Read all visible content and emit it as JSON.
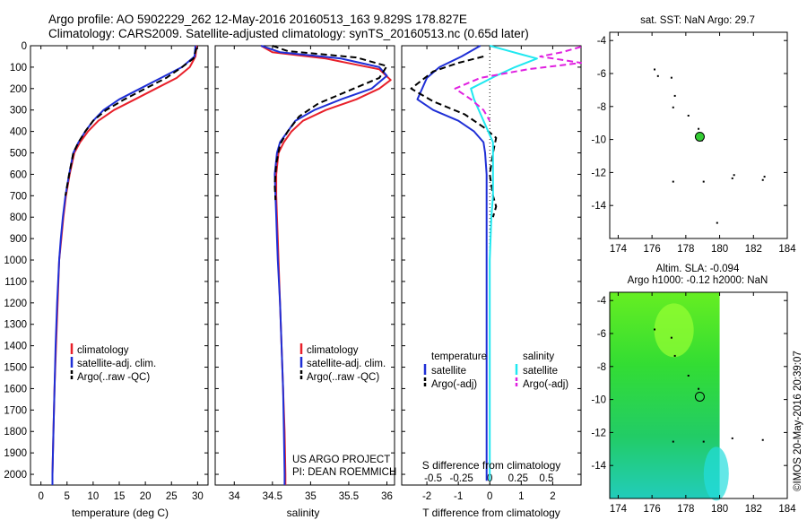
{
  "header": {
    "line1": "Argo profile: AO 5902229_262 12-May-2016 20160513_163 9.829S 178.827E",
    "line2": "Climatology: CARS2009. Satellite-adjusted climatology: synTS_20160513.nc (0.65d later)"
  },
  "colors": {
    "climatology": "#e8202a",
    "satellite": "#1f2fd6",
    "argo": "#000000",
    "sal_sat": "#20e8f0",
    "sal_argo": "#e020e0",
    "map_green": "#33cc33"
  },
  "chart_data": [
    {
      "type": "line",
      "id": "temperature",
      "xlabel": "temperature (deg C)",
      "ylabel": "",
      "xlim": [
        -2,
        32
      ],
      "ylim": [
        2050,
        0
      ],
      "xticks": [
        "0",
        "5",
        "10",
        "15",
        "20",
        "25",
        "30"
      ],
      "xtick_values": [
        0,
        5,
        10,
        15,
        20,
        25,
        30
      ],
      "yticks": [
        "0",
        "100",
        "200",
        "300",
        "400",
        "500",
        "600",
        "700",
        "800",
        "900",
        "1000",
        "1100",
        "1200",
        "1300",
        "1400",
        "1500",
        "1600",
        "1700",
        "1800",
        "1900",
        "2000"
      ],
      "ytick_values": [
        0,
        100,
        200,
        300,
        400,
        500,
        600,
        700,
        800,
        900,
        1000,
        1100,
        1200,
        1300,
        1400,
        1500,
        1600,
        1700,
        1800,
        1900,
        2000
      ],
      "legend": [
        "climatology",
        "satellite-adj. clim.",
        "Argo(..raw -QC)"
      ],
      "series": [
        {
          "name": "climatology",
          "color": "#e8202a",
          "dash": false,
          "points": [
            [
              29.8,
              0
            ],
            [
              29.6,
              50
            ],
            [
              28.5,
              100
            ],
            [
              26,
              150
            ],
            [
              22,
              200
            ],
            [
              18,
              250
            ],
            [
              14,
              300
            ],
            [
              11,
              350
            ],
            [
              9,
              400
            ],
            [
              7.5,
              450
            ],
            [
              6.4,
              500
            ],
            [
              5.5,
              600
            ],
            [
              4.8,
              700
            ],
            [
              4.3,
              800
            ],
            [
              3.9,
              900
            ],
            [
              3.5,
              1000
            ],
            [
              3.2,
              1200
            ],
            [
              2.9,
              1400
            ],
            [
              2.6,
              1600
            ],
            [
              2.4,
              1800
            ],
            [
              2.2,
              2000
            ],
            [
              2.2,
              2050
            ]
          ]
        },
        {
          "name": "satellite-adj. clim.",
          "color": "#1f2fd6",
          "dash": false,
          "points": [
            [
              29.6,
              0
            ],
            [
              29.4,
              50
            ],
            [
              27,
              100
            ],
            [
              23,
              150
            ],
            [
              19,
              200
            ],
            [
              15,
              250
            ],
            [
              12,
              300
            ],
            [
              10,
              350
            ],
            [
              8.5,
              400
            ],
            [
              7.2,
              450
            ],
            [
              6.2,
              500
            ],
            [
              5.4,
              600
            ],
            [
              4.7,
              700
            ],
            [
              4.2,
              800
            ],
            [
              3.8,
              900
            ],
            [
              3.5,
              1000
            ],
            [
              3.1,
              1200
            ],
            [
              2.8,
              1400
            ],
            [
              2.6,
              1600
            ],
            [
              2.4,
              1800
            ],
            [
              2.2,
              2000
            ],
            [
              2.2,
              2050
            ]
          ]
        },
        {
          "name": "Argo(..raw -QC)",
          "color": "#000000",
          "dash": true,
          "points": [
            [
              29.8,
              10
            ],
            [
              29.2,
              60
            ],
            [
              27,
              100
            ],
            [
              24,
              150
            ],
            [
              20,
              200
            ],
            [
              16,
              250
            ],
            [
              12.5,
              300
            ],
            [
              10,
              350
            ],
            [
              8.5,
              400
            ],
            [
              7.2,
              450
            ],
            [
              6.2,
              500
            ],
            [
              5.4,
              600
            ],
            [
              4.7,
              700
            ]
          ]
        }
      ]
    },
    {
      "type": "line",
      "id": "salinity",
      "xlabel": "salinity",
      "xlim": [
        33.75,
        36.1
      ],
      "ylim": [
        2050,
        0
      ],
      "xticks": [
        "34",
        "34.5",
        "35",
        "35.5",
        "36"
      ],
      "xtick_values": [
        34,
        34.5,
        35,
        35.5,
        36
      ],
      "legend": [
        "climatology",
        "satellite-adj. clim.",
        "Argo(..raw -QC)"
      ],
      "annotation": [
        "US ARGO PROJECT",
        "PI: DEAN ROEMMICH"
      ],
      "series": [
        {
          "name": "climatology",
          "color": "#e8202a",
          "dash": false,
          "points": [
            [
              34.35,
              0
            ],
            [
              34.5,
              30
            ],
            [
              35.2,
              60
            ],
            [
              35.9,
              110
            ],
            [
              36.05,
              160
            ],
            [
              35.9,
              200
            ],
            [
              35.6,
              250
            ],
            [
              35.2,
              300
            ],
            [
              34.9,
              350
            ],
            [
              34.75,
              400
            ],
            [
              34.65,
              450
            ],
            [
              34.58,
              500
            ],
            [
              34.55,
              600
            ],
            [
              34.55,
              700
            ],
            [
              34.56,
              800
            ],
            [
              34.57,
              900
            ],
            [
              34.58,
              1000
            ],
            [
              34.6,
              1200
            ],
            [
              34.62,
              1400
            ],
            [
              34.64,
              1600
            ],
            [
              34.66,
              1800
            ],
            [
              34.67,
              2000
            ],
            [
              34.67,
              2050
            ]
          ]
        },
        {
          "name": "satellite-adj. clim.",
          "color": "#1f2fd6",
          "dash": false,
          "points": [
            [
              34.35,
              0
            ],
            [
              34.6,
              30
            ],
            [
              35.4,
              60
            ],
            [
              35.9,
              100
            ],
            [
              36.0,
              140
            ],
            [
              35.8,
              200
            ],
            [
              35.4,
              250
            ],
            [
              35.05,
              300
            ],
            [
              34.8,
              350
            ],
            [
              34.7,
              400
            ],
            [
              34.6,
              450
            ],
            [
              34.56,
              500
            ],
            [
              34.53,
              600
            ],
            [
              34.54,
              700
            ],
            [
              34.55,
              800
            ],
            [
              34.56,
              900
            ],
            [
              34.57,
              1000
            ],
            [
              34.6,
              1200
            ],
            [
              34.62,
              1400
            ],
            [
              34.64,
              1600
            ],
            [
              34.65,
              1800
            ],
            [
              34.66,
              2000
            ],
            [
              34.66,
              2050
            ]
          ]
        },
        {
          "name": "Argo(..raw -QC)",
          "color": "#000000",
          "dash": true,
          "points": [
            [
              34.5,
              0
            ],
            [
              34.7,
              25
            ],
            [
              35.6,
              55
            ],
            [
              36.0,
              95
            ],
            [
              35.9,
              150
            ],
            [
              35.5,
              210
            ],
            [
              35.1,
              270
            ],
            [
              34.85,
              330
            ],
            [
              34.7,
              400
            ],
            [
              34.6,
              460
            ],
            [
              34.55,
              550
            ],
            [
              34.53,
              650
            ],
            [
              34.54,
              720
            ]
          ]
        }
      ]
    },
    {
      "type": "line",
      "id": "difference",
      "xlabel": "T difference from climatology",
      "xlabel_top": "S difference from climatology",
      "xlim": [
        -2.8,
        2.9
      ],
      "ylim": [
        2050,
        0
      ],
      "xticks": [
        "-2",
        "-1",
        "0",
        "1",
        "2"
      ],
      "xtick_values": [
        -2,
        -1,
        0,
        1,
        2
      ],
      "sticks": [
        "-0.5",
        "-0.25",
        "0",
        "0.25",
        "0.5"
      ],
      "stick_values": [
        -1.8,
        -0.9,
        0,
        0.9,
        1.8
      ],
      "legend_titles": [
        "temperature",
        "salinity"
      ],
      "legend": [
        "satellite",
        "Argo(-adj)",
        "satellite",
        "Argo(-adj)"
      ],
      "series": [
        {
          "name": "T satellite",
          "color": "#1f2fd6",
          "dash": false,
          "points": [
            [
              -0.3,
              0
            ],
            [
              -0.9,
              50
            ],
            [
              -1.6,
              100
            ],
            [
              -2.0,
              150
            ],
            [
              -2.3,
              250
            ],
            [
              -1.8,
              300
            ],
            [
              -1.0,
              350
            ],
            [
              -0.5,
              400
            ],
            [
              -0.2,
              450
            ],
            [
              -0.15,
              500
            ],
            [
              -0.1,
              600
            ],
            [
              -0.1,
              800
            ],
            [
              -0.1,
              1000
            ],
            [
              -0.1,
              1400
            ],
            [
              -0.1,
              1800
            ],
            [
              -0.1,
              2030
            ]
          ]
        },
        {
          "name": "T Argo(-adj)",
          "color": "#000000",
          "dash": true,
          "points": [
            [
              -0.2,
              50
            ],
            [
              -1.0,
              80
            ],
            [
              -1.8,
              120
            ],
            [
              -2.5,
              200
            ],
            [
              -1.8,
              260
            ],
            [
              -0.8,
              320
            ],
            [
              -0.2,
              380
            ],
            [
              0.2,
              430
            ],
            [
              0.1,
              500
            ],
            [
              0.0,
              600
            ],
            [
              0.1,
              700
            ],
            [
              0.2,
              750
            ],
            [
              0.1,
              800
            ]
          ]
        },
        {
          "name": "S satellite",
          "color": "#20e8f0",
          "dash": false,
          "points": [
            [
              0,
              0
            ],
            [
              0.5,
              20
            ],
            [
              1.0,
              40
            ],
            [
              1.5,
              60
            ],
            [
              0.8,
              100
            ],
            [
              0.2,
              140
            ],
            [
              -0.6,
              200
            ],
            [
              -0.5,
              250
            ],
            [
              -0.2,
              350
            ],
            [
              0.1,
              450
            ],
            [
              0.1,
              600
            ],
            [
              0.1,
              700
            ],
            [
              0.05,
              800
            ],
            [
              0.0,
              1000
            ],
            [
              0.0,
              1400
            ],
            [
              0.0,
              1800
            ],
            [
              0.0,
              2030
            ]
          ]
        },
        {
          "name": "S Argo(-adj)",
          "color": "#e020e0",
          "dash": true,
          "points": [
            [
              2.9,
              5
            ],
            [
              2.3,
              30
            ],
            [
              1.6,
              50
            ],
            [
              2.9,
              80
            ],
            [
              1.2,
              110
            ],
            [
              -0.3,
              150
            ],
            [
              -1.1,
              200
            ],
            [
              -0.6,
              250
            ],
            [
              -0.2,
              300
            ],
            [
              0.0,
              350
            ]
          ]
        }
      ]
    },
    {
      "type": "scatter",
      "id": "location-map",
      "title": "sat. SST: NaN Argo: 29.7",
      "xlim": [
        173.5,
        184
      ],
      "ylim": [
        -16,
        -3.5
      ],
      "xticks": [
        "174",
        "176",
        "178",
        "180",
        "182",
        "184"
      ],
      "xtick_values": [
        174,
        176,
        178,
        180,
        182,
        184
      ],
      "yticks": [
        "-4",
        "-6",
        "-8",
        "-10",
        "-12",
        "-14"
      ],
      "ytick_values": [
        -4,
        -6,
        -8,
        -10,
        -12,
        -14
      ],
      "float": {
        "lon": 178.827,
        "lat": -9.829
      },
      "islands": [
        [
          176.1,
          -5.7
        ],
        [
          176.3,
          -6.1
        ],
        [
          177.1,
          -6.2
        ],
        [
          177.3,
          -7.3
        ],
        [
          177.2,
          -8.0
        ],
        [
          178.1,
          -8.5
        ],
        [
          178.7,
          -9.3
        ],
        [
          178.9,
          -10.0
        ],
        [
          177.2,
          -12.5
        ],
        [
          179.0,
          -12.5
        ],
        [
          180.7,
          -12.3
        ],
        [
          180.8,
          -12.1
        ],
        [
          182.5,
          -12.4
        ],
        [
          182.6,
          -12.2
        ],
        [
          179.8,
          -15.0
        ]
      ]
    },
    {
      "type": "heatmap",
      "id": "altimetry-map",
      "title_line1": "Altim. SLA: -0.094",
      "title_line2": "Argo h1000: -0.12 h2000: NaN",
      "xlim": [
        173.5,
        184
      ],
      "ylim": [
        -16,
        -3.5
      ],
      "data_xlim": [
        173.5,
        180
      ],
      "xticks": [
        "174",
        "176",
        "178",
        "180",
        "182",
        "184"
      ],
      "xtick_values": [
        174,
        176,
        178,
        180,
        182,
        184
      ],
      "yticks": [
        "-4",
        "-6",
        "-8",
        "-10",
        "-12",
        "-14"
      ],
      "ytick_values": [
        -4,
        -6,
        -8,
        -10,
        -12,
        -14
      ],
      "float": {
        "lon": 178.827,
        "lat": -9.829
      },
      "islands": [
        [
          176.1,
          -5.7
        ],
        [
          177.1,
          -6.2
        ],
        [
          177.3,
          -7.3
        ],
        [
          178.1,
          -8.5
        ],
        [
          178.7,
          -9.3
        ],
        [
          177.2,
          -12.5
        ],
        [
          179.0,
          -12.5
        ],
        [
          180.7,
          -12.3
        ],
        [
          182.5,
          -12.4
        ]
      ]
    }
  ],
  "credit": "©IMOS 20-May-2016 20:39:07"
}
